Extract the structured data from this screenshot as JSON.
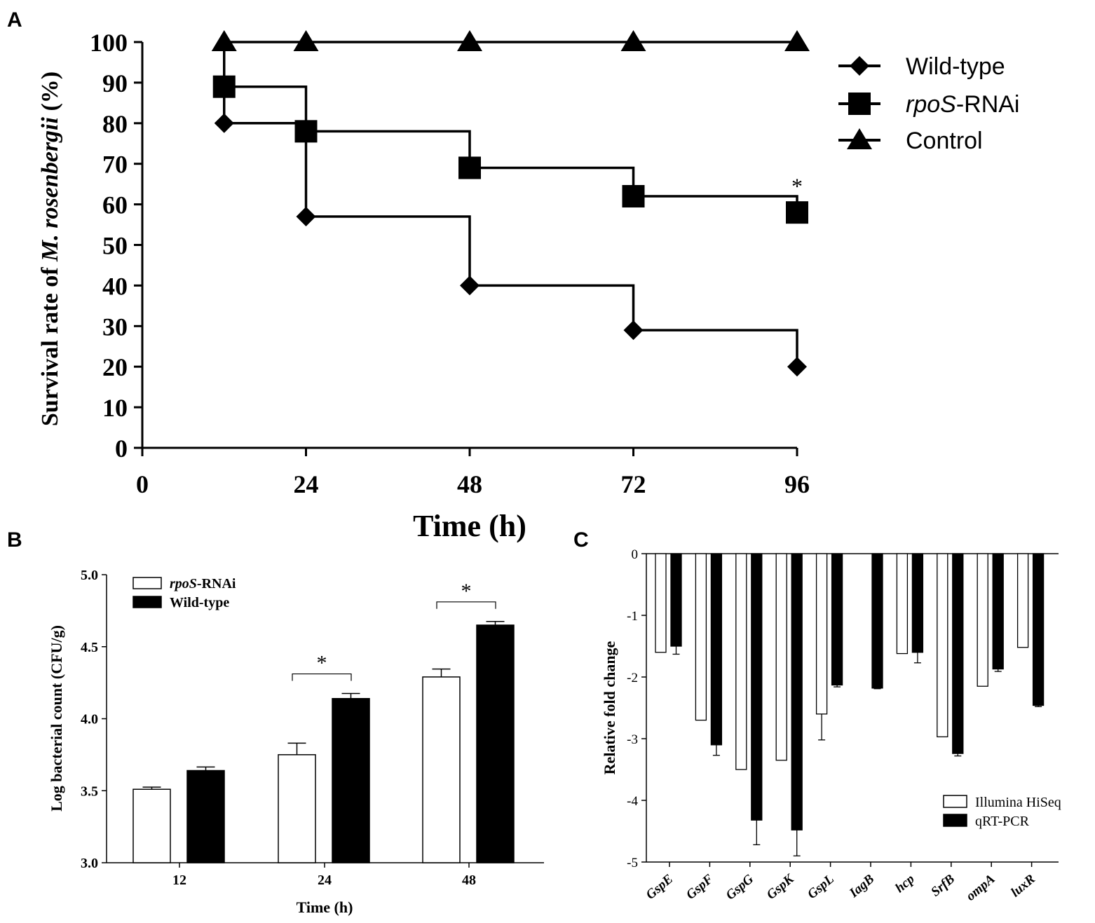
{
  "figure": {
    "colors": {
      "ink": "#000000",
      "background": "#ffffff",
      "open_bar": "#ffffff",
      "filled_bar": "#000000"
    }
  },
  "chart_data": [
    {
      "panel": "A",
      "type": "line",
      "step": true,
      "xlabel": "Time (h)",
      "ylabel_prefix": "Survival rate of ",
      "ylabel_italic": "M. rosenbergii",
      "ylabel_suffix": " (%)",
      "xlim": [
        0,
        96
      ],
      "ylim": [
        0,
        100
      ],
      "xticks": [
        0,
        24,
        48,
        72,
        96
      ],
      "yticks": [
        0,
        10,
        20,
        30,
        40,
        50,
        60,
        70,
        80,
        90,
        100
      ],
      "legend_position": "top-right",
      "series": [
        {
          "name": "Wild-type",
          "name_italic": "",
          "marker": "diamond",
          "x": [
            12,
            24,
            48,
            72,
            96
          ],
          "y": [
            80,
            57,
            40,
            29,
            20
          ]
        },
        {
          "name": "-RNAi",
          "name_italic": "rpoS",
          "marker": "square",
          "x": [
            12,
            24,
            48,
            72,
            96
          ],
          "y": [
            89,
            78,
            69,
            62,
            58
          ]
        },
        {
          "name": "Control",
          "name_italic": "",
          "marker": "triangle",
          "x": [
            12,
            24,
            48,
            72,
            96
          ],
          "y": [
            100,
            100,
            100,
            100,
            100
          ]
        }
      ],
      "annotations": [
        {
          "text": "*",
          "x": 96,
          "y": 64
        }
      ]
    },
    {
      "panel": "B",
      "type": "bar",
      "xlabel": "Time (h)",
      "ylabel": "Log bacterial count (CFU/g)",
      "categories": [
        "12",
        "24",
        "48"
      ],
      "ylim": [
        3.0,
        5.0
      ],
      "yticks": [
        "3.0",
        "3.5",
        "4.0",
        "4.5",
        "5.0"
      ],
      "legend_position": "top-left",
      "series": [
        {
          "name": "-RNAi",
          "name_italic": "rpoS",
          "fill": "open",
          "values": [
            3.51,
            3.75,
            4.29
          ],
          "errors": [
            0.015,
            0.08,
            0.055
          ]
        },
        {
          "name": "Wild-type",
          "name_italic": "",
          "fill": "filled",
          "values": [
            3.64,
            4.14,
            4.65
          ],
          "errors": [
            0.025,
            0.035,
            0.025
          ]
        }
      ],
      "significance": [
        {
          "category": "24",
          "text": "*"
        },
        {
          "category": "48",
          "text": "*"
        }
      ]
    },
    {
      "panel": "C",
      "type": "bar",
      "xlabel": "",
      "ylabel": "Relative fold change",
      "categories": [
        "GspE",
        "GspF",
        "GspG",
        "GspK",
        "GspL",
        "IagB",
        "hcp",
        "SrfB",
        "ompA",
        "luxR"
      ],
      "ylim": [
        -5,
        0
      ],
      "yticks": [
        "0",
        "-1",
        "-2",
        "-3",
        "-4",
        "-5"
      ],
      "legend_position": "bottom-right",
      "series": [
        {
          "name": "Illumina HiSeq",
          "fill": "open",
          "values": [
            -1.6,
            -2.7,
            -3.5,
            -3.35,
            -2.6,
            null,
            -1.62,
            -2.97,
            -2.15,
            -1.52
          ],
          "errors": [
            0,
            0,
            0,
            0,
            0.42,
            0,
            0,
            0,
            0,
            0
          ]
        },
        {
          "name": "qRT-PCR",
          "fill": "filled",
          "values": [
            -1.5,
            -3.1,
            -4.32,
            -4.48,
            -2.13,
            -2.18,
            -1.6,
            -3.24,
            -1.87,
            -2.46
          ],
          "errors": [
            0.13,
            0.17,
            0.4,
            0.42,
            0.03,
            0.01,
            0.17,
            0.04,
            0.04,
            0.02
          ]
        }
      ]
    }
  ]
}
